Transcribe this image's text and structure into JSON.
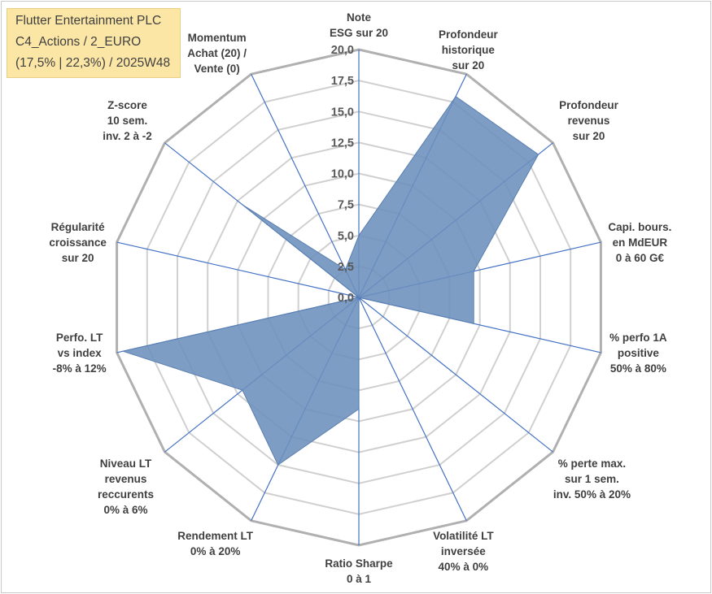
{
  "title_box": {
    "lines": [
      "Flutter Entertainment PLC",
      "C4_Actions / 2_EURO",
      "(17,5% | 22,3%) / 2025W48"
    ]
  },
  "colors": {
    "fill": "#6b8fbd",
    "line": "#4472c4",
    "grid": "#c8c8c8",
    "title_bg": "#fbe6a6"
  },
  "chart_data": {
    "type": "radar",
    "title": "Flutter Entertainment PLC",
    "rmin": 0,
    "rmax": 20,
    "ticks": [
      "0,0",
      "2,5",
      "5,0",
      "7,5",
      "10,0",
      "12,5",
      "15,0",
      "17,5",
      "20,0"
    ],
    "categories": [
      [
        "Note",
        "ESG sur 20"
      ],
      [
        "Profondeur",
        "historique",
        "sur 20"
      ],
      [
        "Profondeur",
        "revenus",
        "sur 20"
      ],
      [
        "Capi. bours.",
        "en MdEUR",
        "0 à 60 G€"
      ],
      [
        "% perfo 1A",
        "positive",
        "50% à 80%"
      ],
      [
        "% perte max.",
        "sur 1 sem.",
        "inv. 50% à 20%"
      ],
      [
        "Volatilité LT",
        "inversée",
        "40% à 0%"
      ],
      [
        "Ratio Sharpe",
        "0 à 1"
      ],
      [
        "Rendement LT",
        "0% à 20%"
      ],
      [
        "Niveau LT",
        "revenus",
        "reccurents",
        "0% à 6%"
      ],
      [
        "Perfo. LT",
        "vs index",
        "-8% à 12%"
      ],
      [
        "Régularité",
        "croissance",
        "sur 20"
      ],
      [
        "Z-score",
        "10 sem.",
        "inv. 2 à -2"
      ],
      [
        "Momentum",
        "Achat (20) /",
        "Vente (0)"
      ]
    ],
    "series": [
      {
        "name": "Flutter Entertainment PLC",
        "values": [
          5.0,
          18.0,
          18.5,
          9.5,
          9.5,
          0.0,
          0.0,
          9.0,
          15.0,
          12.0,
          19.5,
          0.0,
          12.0,
          2.5
        ]
      }
    ]
  }
}
